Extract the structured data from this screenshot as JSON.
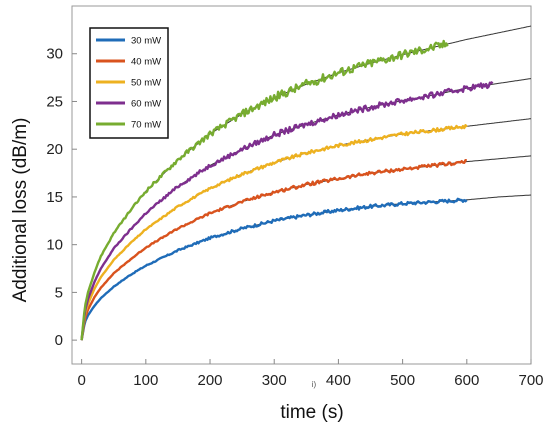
{
  "chart_data": {
    "type": "line",
    "xlabel": "time (s)",
    "ylabel": "Additional loss  (dB/m)",
    "xlim": [
      -15,
      700
    ],
    "ylim": [
      -2.5,
      35
    ],
    "xticks": [
      0,
      100,
      200,
      300,
      400,
      500,
      600,
      700
    ],
    "yticks": [
      0,
      5,
      10,
      15,
      20,
      25,
      30
    ],
    "stray_mark": "i)",
    "legend_position": "top-left",
    "fit_color": "#333333",
    "x": [
      0,
      5,
      10,
      20,
      30,
      50,
      75,
      100,
      150,
      200,
      250,
      300,
      350,
      400,
      450,
      500,
      550,
      600,
      650,
      700
    ],
    "series": [
      {
        "name": "30 mW",
        "color": "#1F6CB8",
        "end": 600,
        "values": [
          0,
          1.9,
          2.6,
          3.6,
          4.4,
          5.6,
          6.8,
          7.8,
          9.4,
          10.7,
          11.7,
          12.5,
          13.1,
          13.6,
          14.0,
          14.3,
          14.5,
          14.7,
          15.0,
          15.2
        ]
      },
      {
        "name": "40 mW",
        "color": "#D9531E",
        "end": 600,
        "values": [
          0,
          2.3,
          3.2,
          4.5,
          5.5,
          7.0,
          8.4,
          9.7,
          11.7,
          13.3,
          14.5,
          15.5,
          16.3,
          16.9,
          17.5,
          17.9,
          18.3,
          18.7,
          19.0,
          19.3
        ]
      },
      {
        "name": "50 mW",
        "color": "#EDB120",
        "end": 600,
        "values": [
          0,
          2.7,
          3.8,
          5.4,
          6.6,
          8.4,
          10.1,
          11.6,
          14.0,
          15.9,
          17.4,
          18.6,
          19.6,
          20.4,
          21.0,
          21.6,
          22.0,
          22.4,
          22.8,
          23.2
        ]
      },
      {
        "name": "60 mW",
        "color": "#7E2F8E",
        "end": 640,
        "values": [
          0,
          3.0,
          4.3,
          6.1,
          7.5,
          9.6,
          11.5,
          13.3,
          16.1,
          18.3,
          20.0,
          21.5,
          22.6,
          23.6,
          24.4,
          25.1,
          25.7,
          26.4,
          26.9,
          27.4
        ]
      },
      {
        "name": "70 mW",
        "color": "#77AC30",
        "end": 570,
        "values": [
          0,
          3.5,
          5.0,
          7.1,
          8.8,
          11.2,
          13.5,
          15.6,
          18.9,
          21.6,
          23.7,
          25.4,
          26.8,
          28.0,
          29.0,
          29.9,
          30.7,
          31.5,
          32.2,
          32.9
        ]
      }
    ]
  }
}
